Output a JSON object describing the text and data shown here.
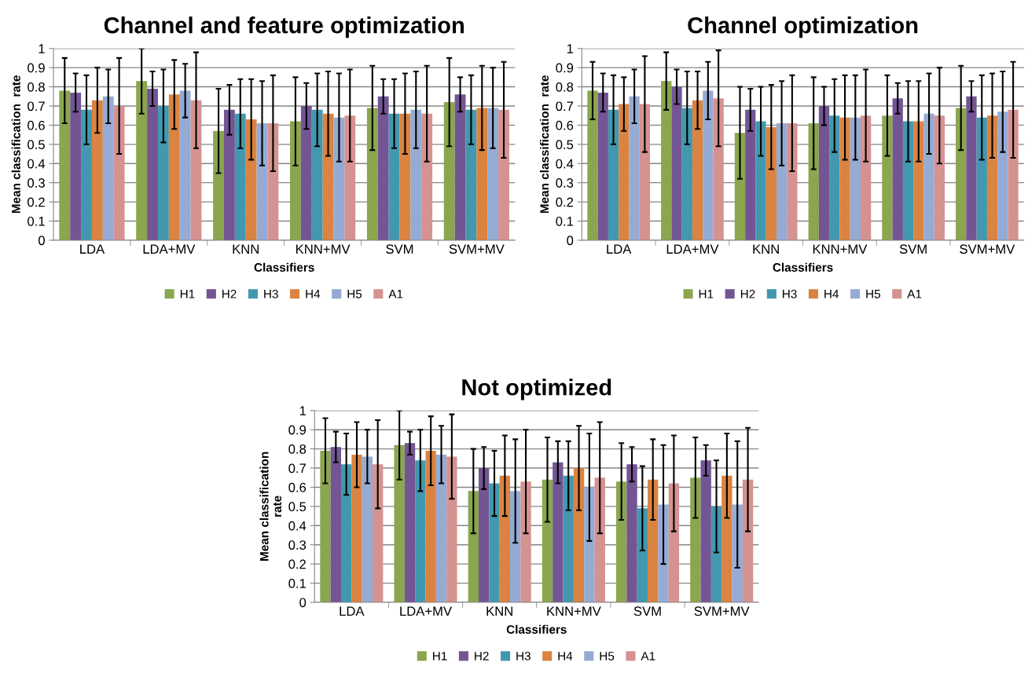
{
  "chart_data": [
    {
      "type": "bar",
      "title": "Channel and feature optimization",
      "xlabel": "Classifiers",
      "ylabel": "Mean classification  rate",
      "categories": [
        "LDA",
        "LDA+MV",
        "KNN",
        "KNN+MV",
        "SVM",
        "SVM+MV"
      ],
      "ylim": [
        0,
        1
      ],
      "yticks": [
        0,
        0.1,
        0.2,
        0.3,
        0.4,
        0.5,
        0.6,
        0.7,
        0.8,
        0.9,
        1
      ],
      "grid": "y",
      "legend": "bottom",
      "series": [
        {
          "name": "H1",
          "color": "#8aa64e",
          "values": [
            0.78,
            0.83,
            0.57,
            0.62,
            0.69,
            0.72
          ],
          "errors": [
            0.17,
            0.17,
            0.22,
            0.23,
            0.22,
            0.23
          ]
        },
        {
          "name": "H2",
          "color": "#735594",
          "values": [
            0.77,
            0.79,
            0.68,
            0.7,
            0.75,
            0.76
          ],
          "errors": [
            0.1,
            0.09,
            0.13,
            0.12,
            0.09,
            0.09
          ]
        },
        {
          "name": "H3",
          "color": "#4298ae",
          "values": [
            0.68,
            0.7,
            0.66,
            0.68,
            0.66,
            0.68
          ],
          "errors": [
            0.18,
            0.19,
            0.18,
            0.19,
            0.18,
            0.18
          ]
        },
        {
          "name": "H4",
          "color": "#db8340",
          "values": [
            0.73,
            0.76,
            0.63,
            0.66,
            0.66,
            0.69
          ],
          "errors": [
            0.17,
            0.18,
            0.21,
            0.22,
            0.21,
            0.22
          ]
        },
        {
          "name": "H5",
          "color": "#95abd4",
          "values": [
            0.75,
            0.78,
            0.61,
            0.64,
            0.68,
            0.69
          ],
          "errors": [
            0.14,
            0.14,
            0.22,
            0.23,
            0.2,
            0.21
          ]
        },
        {
          "name": "A1",
          "color": "#d49290",
          "values": [
            0.7,
            0.73,
            0.61,
            0.65,
            0.66,
            0.68
          ],
          "errors": [
            0.25,
            0.25,
            0.25,
            0.24,
            0.25,
            0.25
          ]
        }
      ]
    },
    {
      "type": "bar",
      "title": "Channel optimization",
      "xlabel": "Classifiers",
      "ylabel": "Mean classification  rate",
      "categories": [
        "LDA",
        "LDA+MV",
        "KNN",
        "KNN+MV",
        "SVM",
        "SVM+MV"
      ],
      "ylim": [
        0,
        1
      ],
      "yticks": [
        0,
        0.1,
        0.2,
        0.3,
        0.4,
        0.5,
        0.6,
        0.7,
        0.8,
        0.9,
        1
      ],
      "grid": "y",
      "legend": "bottom",
      "series": [
        {
          "name": "H1",
          "color": "#8aa64e",
          "values": [
            0.78,
            0.83,
            0.56,
            0.61,
            0.65,
            0.69
          ],
          "errors": [
            0.15,
            0.15,
            0.24,
            0.24,
            0.21,
            0.22
          ]
        },
        {
          "name": "H2",
          "color": "#735594",
          "values": [
            0.77,
            0.8,
            0.68,
            0.7,
            0.74,
            0.75
          ],
          "errors": [
            0.1,
            0.09,
            0.11,
            0.1,
            0.08,
            0.08
          ]
        },
        {
          "name": "H3",
          "color": "#4298ae",
          "values": [
            0.68,
            0.69,
            0.62,
            0.65,
            0.62,
            0.64
          ],
          "errors": [
            0.18,
            0.19,
            0.18,
            0.19,
            0.21,
            0.22
          ]
        },
        {
          "name": "H4",
          "color": "#db8340",
          "values": [
            0.71,
            0.73,
            0.59,
            0.64,
            0.62,
            0.65
          ],
          "errors": [
            0.14,
            0.15,
            0.22,
            0.22,
            0.21,
            0.22
          ]
        },
        {
          "name": "H5",
          "color": "#95abd4",
          "values": [
            0.75,
            0.78,
            0.61,
            0.64,
            0.66,
            0.67
          ],
          "errors": [
            0.14,
            0.15,
            0.22,
            0.22,
            0.21,
            0.21
          ]
        },
        {
          "name": "A1",
          "color": "#d49290",
          "values": [
            0.71,
            0.74,
            0.61,
            0.65,
            0.65,
            0.68
          ],
          "errors": [
            0.25,
            0.25,
            0.25,
            0.24,
            0.25,
            0.25
          ]
        }
      ]
    },
    {
      "type": "bar",
      "title": "Not optimized",
      "xlabel": "Classifiers",
      "ylabel": "Mean classification\nrate",
      "categories": [
        "LDA",
        "LDA+MV",
        "KNN",
        "KNN+MV",
        "SVM",
        "SVM+MV"
      ],
      "ylim": [
        0,
        1
      ],
      "yticks": [
        0,
        0.1,
        0.2,
        0.3,
        0.4,
        0.5,
        0.6,
        0.7,
        0.8,
        0.9,
        1
      ],
      "grid": "y",
      "legend": "bottom",
      "series": [
        {
          "name": "H1",
          "color": "#8aa64e",
          "values": [
            0.79,
            0.82,
            0.58,
            0.64,
            0.63,
            0.65
          ],
          "errors": [
            0.17,
            0.18,
            0.22,
            0.22,
            0.2,
            0.21
          ]
        },
        {
          "name": "H2",
          "color": "#735594",
          "values": [
            0.81,
            0.83,
            0.7,
            0.73,
            0.72,
            0.74
          ],
          "errors": [
            0.08,
            0.06,
            0.11,
            0.11,
            0.09,
            0.08
          ]
        },
        {
          "name": "H3",
          "color": "#4298ae",
          "values": [
            0.72,
            0.74,
            0.62,
            0.66,
            0.49,
            0.5
          ],
          "errors": [
            0.16,
            0.16,
            0.17,
            0.18,
            0.22,
            0.24
          ]
        },
        {
          "name": "H4",
          "color": "#db8340",
          "values": [
            0.77,
            0.79,
            0.66,
            0.7,
            0.64,
            0.66
          ],
          "errors": [
            0.17,
            0.18,
            0.21,
            0.22,
            0.21,
            0.22
          ]
        },
        {
          "name": "H5",
          "color": "#95abd4",
          "values": [
            0.76,
            0.77,
            0.58,
            0.6,
            0.51,
            0.51
          ],
          "errors": [
            0.14,
            0.15,
            0.27,
            0.28,
            0.31,
            0.33
          ]
        },
        {
          "name": "A1",
          "color": "#d49290",
          "values": [
            0.72,
            0.76,
            0.63,
            0.65,
            0.62,
            0.64
          ],
          "errors": [
            0.23,
            0.22,
            0.27,
            0.29,
            0.25,
            0.27
          ]
        }
      ]
    }
  ]
}
